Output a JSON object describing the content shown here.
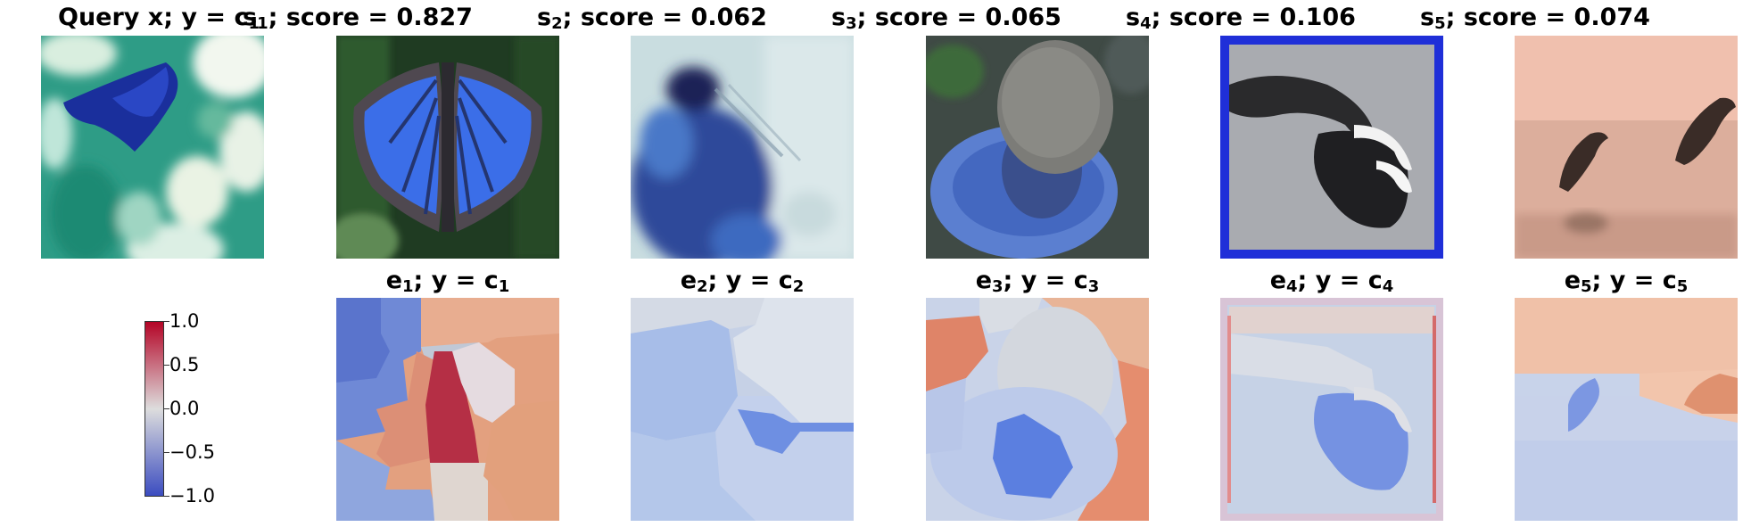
{
  "query": {
    "title_main": "Query x; y = c",
    "title_sub": "1"
  },
  "samples": [
    {
      "s_main": "s",
      "s_sub": "1",
      "score_text": "; score = 0.827"
    },
    {
      "s_main": "s",
      "s_sub": "2",
      "score_text": "; score = 0.062"
    },
    {
      "s_main": "s",
      "s_sub": "3",
      "score_text": "; score = 0.065"
    },
    {
      "s_main": "s",
      "s_sub": "4",
      "score_text": "; score = 0.106"
    },
    {
      "s_main": "s",
      "s_sub": "5",
      "score_text": "; score = 0.074"
    }
  ],
  "explanations": [
    {
      "e_main": "e",
      "e_sub": "1",
      "y_text": "; y = c",
      "y_sub": "1"
    },
    {
      "e_main": "e",
      "e_sub": "2",
      "y_text": "; y = c",
      "y_sub": "2"
    },
    {
      "e_main": "e",
      "e_sub": "3",
      "y_text": "; y = c",
      "y_sub": "3"
    },
    {
      "e_main": "e",
      "e_sub": "4",
      "y_text": "; y = c",
      "y_sub": "4"
    },
    {
      "e_main": "e",
      "e_sub": "5",
      "y_text": "; y = c",
      "y_sub": "5"
    }
  ],
  "colorbar": {
    "ticks": [
      "1.0",
      "0.5",
      "0.0",
      "−0.5",
      "−1.0"
    ],
    "colors": {
      "high": "#b40426",
      "mid": "#dddddd",
      "low": "#3b4cc0"
    }
  }
}
